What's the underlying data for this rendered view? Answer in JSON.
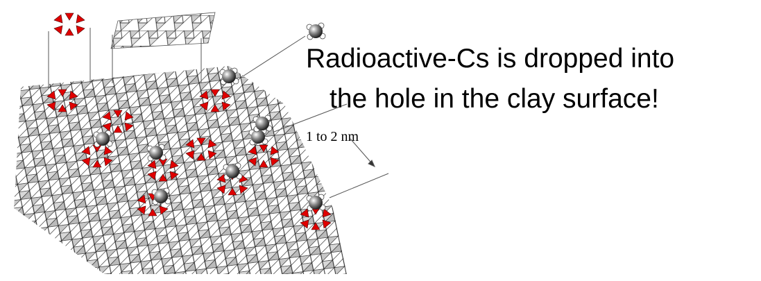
{
  "callout": {
    "lines": [
      "Radioactive-Cs is dropped into",
      "the hole in the clay surface!"
    ]
  },
  "scale_label": "1 to 2 nm"
}
